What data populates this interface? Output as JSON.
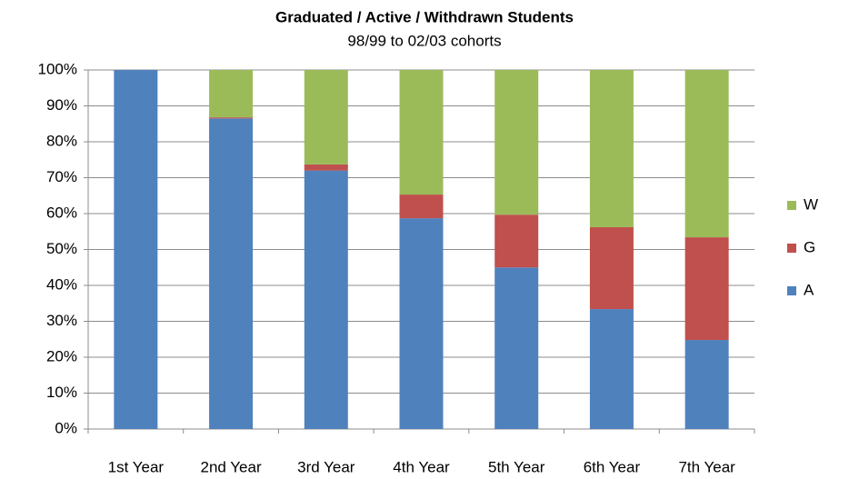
{
  "chart_data": {
    "type": "stacked_bar",
    "title": "Graduated / Active / Withdrawn Students",
    "subtitle": "98/99 to 02/03 cohorts",
    "categories": [
      "1st Year",
      "2nd Year",
      "3rd Year",
      "4th Year",
      "5th Year",
      "6th Year",
      "7th Year"
    ],
    "series": [
      {
        "name": "A",
        "color": "#4f81bd",
        "values": [
          100,
          86.5,
          72,
          58.7,
          45,
          33.4,
          24.8
        ]
      },
      {
        "name": "G",
        "color": "#c0504d",
        "values": [
          0,
          0.3,
          1.7,
          6.6,
          14.7,
          22.8,
          28.6
        ]
      },
      {
        "name": "W",
        "color": "#9bbb59",
        "values": [
          0,
          13.2,
          26.3,
          34.7,
          40.3,
          43.8,
          46.6
        ]
      }
    ],
    "ylim": [
      0,
      100
    ],
    "yticks": [
      {
        "value": 0,
        "label": "0%"
      },
      {
        "value": 10,
        "label": "10%"
      },
      {
        "value": 20,
        "label": "20%"
      },
      {
        "value": 30,
        "label": "30%"
      },
      {
        "value": 40,
        "label": "40%"
      },
      {
        "value": 50,
        "label": "50%"
      },
      {
        "value": 60,
        "label": "60%"
      },
      {
        "value": 70,
        "label": "70%"
      },
      {
        "value": 80,
        "label": "80%"
      },
      {
        "value": 90,
        "label": "90%"
      },
      {
        "value": 100,
        "label": "100%"
      }
    ],
    "grid": true,
    "legend": "right"
  }
}
